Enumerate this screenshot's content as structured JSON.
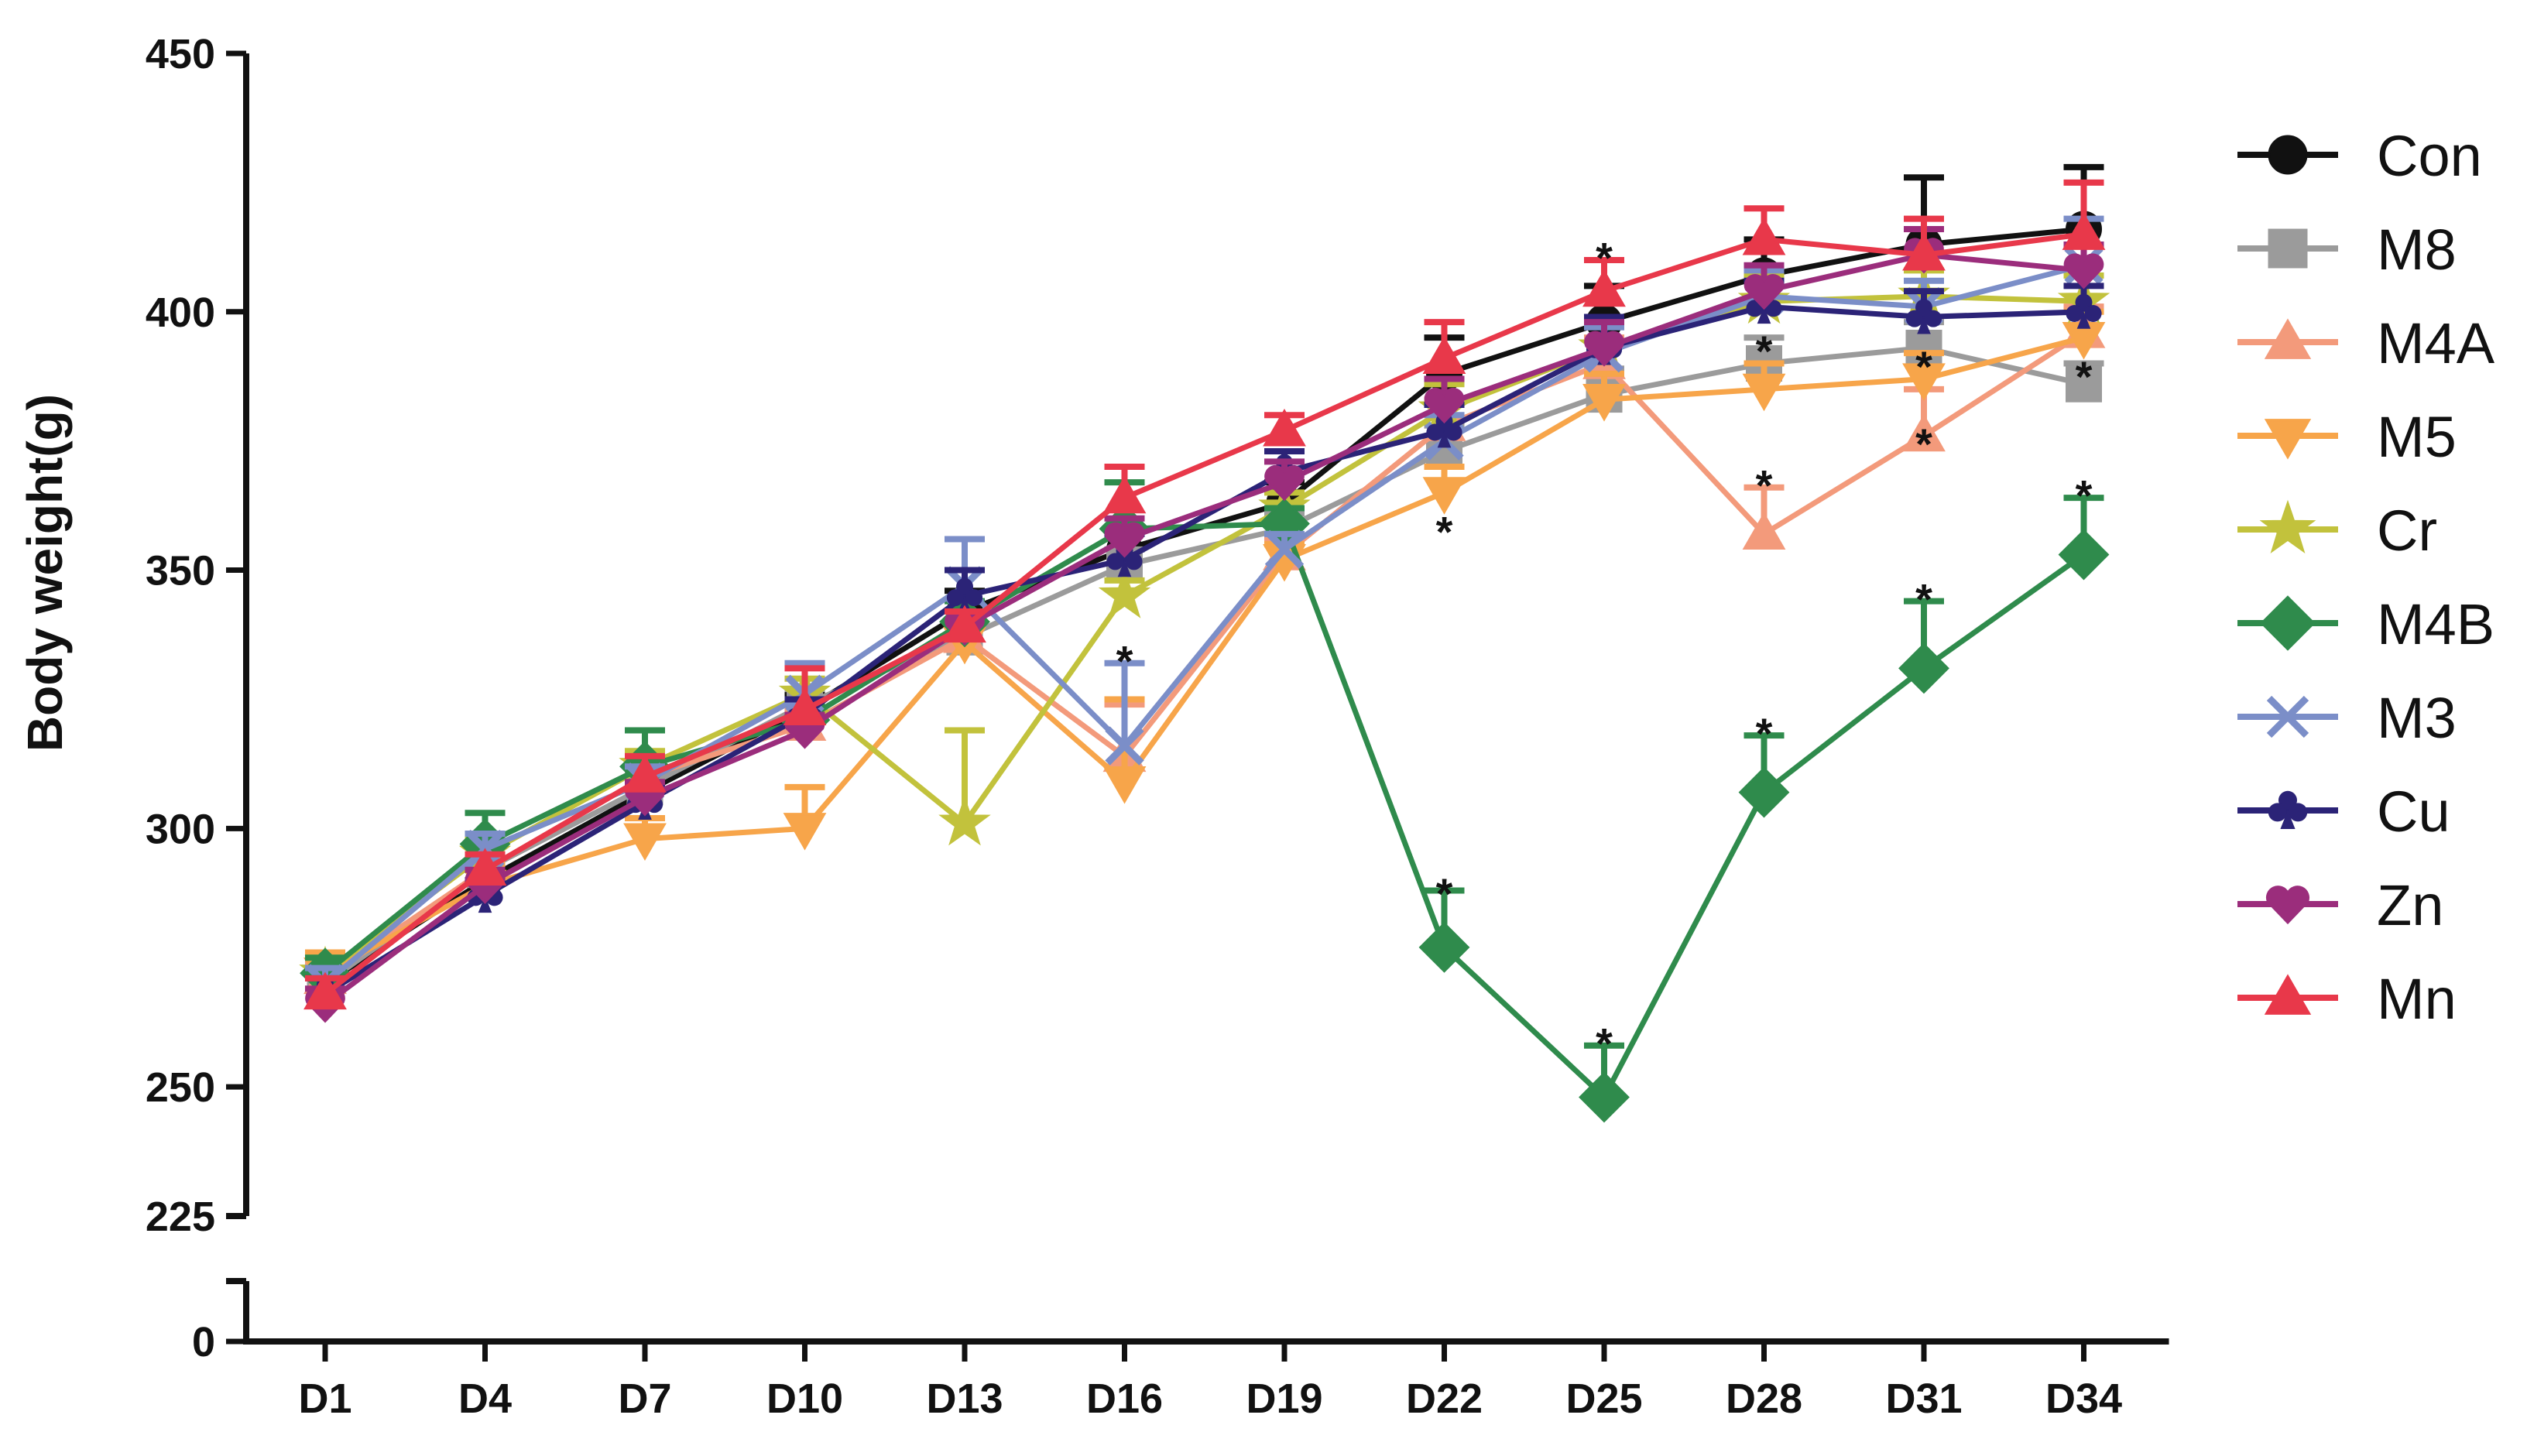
{
  "chart_data": {
    "type": "line",
    "title": "",
    "xlabel": "",
    "ylabel": "Body weight(g)",
    "categories": [
      "D1",
      "D4",
      "D7",
      "D10",
      "D13",
      "D16",
      "D19",
      "D22",
      "D25",
      "D28",
      "D31",
      "D34"
    ],
    "y_ticks": [
      0,
      225,
      250,
      300,
      350,
      400,
      450
    ],
    "y_break": {
      "lower": [
        0,
        10
      ],
      "upper": [
        225,
        450
      ]
    },
    "grid": false,
    "legend_position": "right",
    "series": [
      {
        "name": "Con",
        "color": "#111111",
        "marker": "circle",
        "values": [
          270,
          290,
          307,
          323,
          342,
          354,
          363,
          388,
          398,
          407,
          413,
          416
        ],
        "errors": [
          3,
          3,
          3,
          3,
          4,
          4,
          4,
          7,
          7,
          7,
          13,
          12
        ]
      },
      {
        "name": "M8",
        "color": "#9b9b9b",
        "marker": "square",
        "values": [
          270,
          292,
          308,
          324,
          337,
          351,
          358,
          373,
          384,
          390,
          393,
          386
        ],
        "errors": [
          3,
          3,
          3,
          3,
          3,
          3,
          3,
          5,
          5,
          5,
          5,
          4
        ]
      },
      {
        "name": "M4A",
        "color": "#f39a7b",
        "marker": "triangle-up",
        "values": [
          271,
          292,
          310,
          320,
          337,
          314,
          353,
          378,
          390,
          357,
          376,
          396
        ],
        "errors": [
          3,
          3,
          3,
          3,
          3,
          10,
          3,
          5,
          5,
          9,
          9,
          5
        ]
      },
      {
        "name": "M5",
        "color": "#f7a54a",
        "marker": "triangle-down",
        "values": [
          272,
          289,
          298,
          300,
          336,
          309,
          352,
          365,
          383,
          385,
          387,
          395
        ],
        "errors": [
          4,
          4,
          4,
          8,
          3,
          16,
          3,
          5,
          5,
          5,
          5,
          5
        ]
      },
      {
        "name": "Cr",
        "color": "#c2c23c",
        "marker": "star",
        "values": [
          272,
          295,
          312,
          326,
          301,
          345,
          362,
          381,
          393,
          402,
          403,
          402
        ],
        "errors": [
          3,
          3,
          3,
          3,
          18,
          3,
          3,
          5,
          5,
          5,
          5,
          5
        ]
      },
      {
        "name": "M4B",
        "color": "#2f8b4c",
        "marker": "diamond",
        "values": [
          272,
          297,
          312,
          321,
          340,
          358,
          359,
          277,
          248,
          307,
          331,
          353
        ],
        "errors": [
          3,
          6,
          7,
          3,
          4,
          9,
          3,
          11,
          10,
          11,
          13,
          11
        ]
      },
      {
        "name": "M3",
        "color": "#7b8ec8",
        "marker": "x",
        "values": [
          270,
          296,
          309,
          326,
          347,
          316,
          354,
          375,
          392,
          403,
          401,
          409
        ],
        "errors": [
          3,
          3,
          3,
          6,
          9,
          16,
          3,
          5,
          5,
          5,
          5,
          9
        ]
      },
      {
        "name": "Cu",
        "color": "#2b2377",
        "marker": "club",
        "values": [
          268,
          287,
          305,
          322,
          345,
          352,
          369,
          377,
          393,
          401,
          399,
          400
        ],
        "errors": [
          3,
          3,
          3,
          3,
          5,
          5,
          4,
          5,
          6,
          5,
          5,
          5
        ]
      },
      {
        "name": "Zn",
        "color": "#9b2d7c",
        "marker": "heart",
        "values": [
          266,
          289,
          306,
          319,
          339,
          356,
          367,
          382,
          393,
          404,
          411,
          408
        ],
        "errors": [
          3,
          3,
          3,
          3,
          3,
          4,
          4,
          5,
          5,
          5,
          5,
          5
        ]
      },
      {
        "name": "Mn",
        "color": "#e8384a",
        "marker": "triangle-up",
        "values": [
          268,
          292,
          310,
          323,
          339,
          364,
          377,
          391,
          404,
          414,
          411,
          415
        ],
        "errors": [
          3,
          3,
          4,
          8,
          3,
          6,
          3,
          7,
          6,
          6,
          7,
          10
        ]
      }
    ],
    "annotations": [
      {
        "text": "*",
        "x": "D16",
        "y": 334
      },
      {
        "text": "*",
        "x": "D22",
        "y": 289
      },
      {
        "text": "*",
        "x": "D22",
        "y": 359
      },
      {
        "text": "*",
        "x": "D25",
        "y": 260
      },
      {
        "text": "*",
        "x": "D25",
        "y": 412
      },
      {
        "text": "*",
        "x": "D28",
        "y": 320
      },
      {
        "text": "*",
        "x": "D28",
        "y": 368
      },
      {
        "text": "*",
        "x": "D28",
        "y": 394
      },
      {
        "text": "*",
        "x": "D31",
        "y": 346
      },
      {
        "text": "*",
        "x": "D31",
        "y": 376
      },
      {
        "text": "*",
        "x": "D31",
        "y": 391
      },
      {
        "text": "*",
        "x": "D34",
        "y": 366
      },
      {
        "text": "*",
        "x": "D34",
        "y": 389
      }
    ]
  }
}
